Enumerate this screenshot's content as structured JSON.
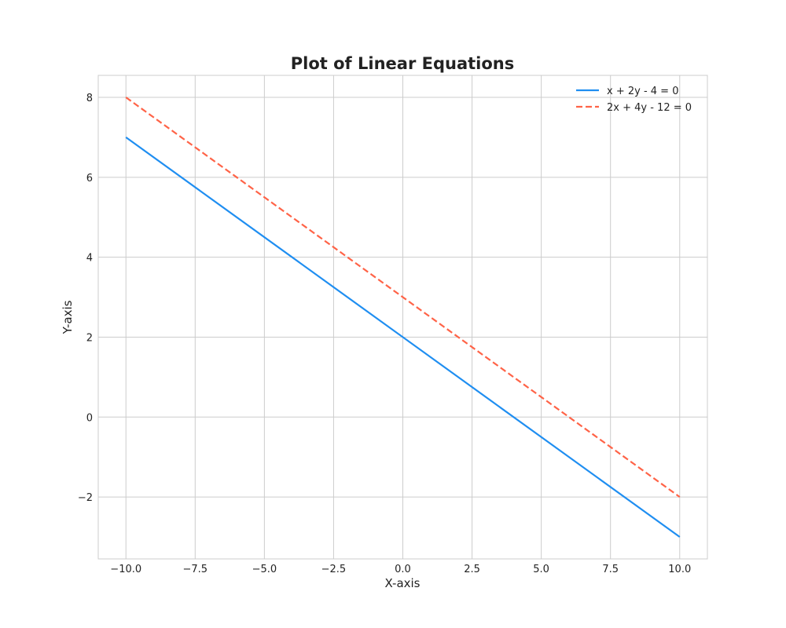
{
  "chart_data": {
    "type": "line",
    "title": "Plot of Linear Equations",
    "xlabel": "X-axis",
    "ylabel": "Y-axis",
    "xlim": [
      -11,
      11
    ],
    "ylim": [
      -3.55,
      8.55
    ],
    "grid": true,
    "legend_position": "top-right",
    "x_ticks": [
      -10,
      -7.5,
      -5,
      -2.5,
      0,
      2.5,
      5,
      7.5,
      10
    ],
    "x_tick_labels": [
      "−10.0",
      "−7.5",
      "−5.0",
      "−2.5",
      "0.0",
      "2.5",
      "5.0",
      "7.5",
      "10.0"
    ],
    "y_ticks": [
      -2,
      0,
      2,
      4,
      6,
      8
    ],
    "y_tick_labels": [
      "−2",
      "0",
      "2",
      "4",
      "6",
      "8"
    ],
    "series": [
      {
        "name": "x + 2y - 4 = 0",
        "color": "#1f8ef1",
        "style": "solid",
        "x": [
          -10,
          10
        ],
        "y": [
          7,
          -3
        ]
      },
      {
        "name": "2x + 4y - 12 = 0",
        "color": "#ff6347",
        "style": "dashed",
        "x": [
          -10,
          10
        ],
        "y": [
          8,
          -2
        ]
      }
    ]
  }
}
